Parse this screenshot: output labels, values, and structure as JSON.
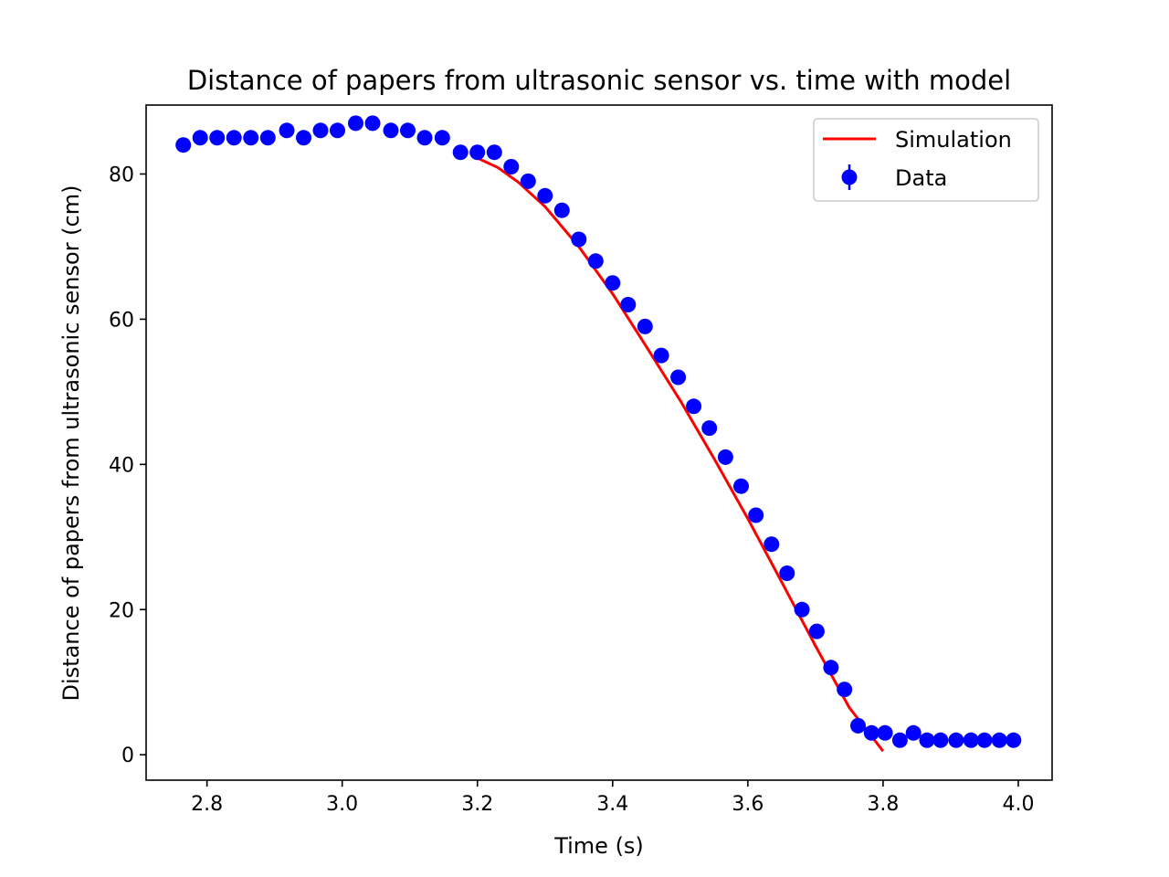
{
  "chart_data": {
    "type": "scatter",
    "title": "Distance of papers from ultrasonic sensor vs. time with model",
    "xlabel": "Time (s)",
    "ylabel": "Distance of papers from ultrasonic sensor (cm)",
    "xlim": [
      2.71,
      4.05
    ],
    "ylim": [
      -3.5,
      89.5
    ],
    "xticks": [
      2.8,
      3.0,
      3.2,
      3.4,
      3.6,
      3.8,
      4.0
    ],
    "xtick_labels": [
      "2.8",
      "3.0",
      "3.2",
      "3.4",
      "3.6",
      "3.8",
      "4.0"
    ],
    "yticks": [
      0,
      20,
      40,
      60,
      80
    ],
    "ytick_labels": [
      "0",
      "20",
      "40",
      "60",
      "80"
    ],
    "grid": false,
    "legend_position": "top-right",
    "legend": [
      {
        "label": "Simulation",
        "color": "#ff0000",
        "marker": "line"
      },
      {
        "label": "Data",
        "color": "#0000ff",
        "marker": "errorbar-dot"
      }
    ],
    "series": [
      {
        "name": "Simulation",
        "kind": "line",
        "color": "#ff0000",
        "x": [
          3.2,
          3.23,
          3.26,
          3.3,
          3.35,
          3.4,
          3.45,
          3.5,
          3.55,
          3.6,
          3.65,
          3.7,
          3.75,
          3.8
        ],
        "y": [
          82.2,
          80.9,
          78.9,
          75.5,
          70.0,
          63.5,
          56.2,
          48.8,
          40.8,
          32.5,
          23.8,
          15.0,
          6.5,
          0.5
        ]
      },
      {
        "name": "Data",
        "kind": "scatter",
        "color": "#0000ff",
        "x": [
          2.765,
          2.79,
          2.815,
          2.84,
          2.865,
          2.89,
          2.918,
          2.943,
          2.968,
          2.993,
          3.02,
          3.045,
          3.072,
          3.097,
          3.122,
          3.148,
          3.175,
          3.2,
          3.225,
          3.25,
          3.275,
          3.3,
          3.325,
          3.35,
          3.375,
          3.4,
          3.423,
          3.448,
          3.472,
          3.497,
          3.52,
          3.543,
          3.567,
          3.59,
          3.612,
          3.635,
          3.658,
          3.68,
          3.702,
          3.723,
          3.743,
          3.763,
          3.783,
          3.803,
          3.825,
          3.845,
          3.865,
          3.885,
          3.908,
          3.93,
          3.95,
          3.972,
          3.993
        ],
        "y": [
          84,
          85,
          85,
          85,
          85,
          85,
          86,
          85,
          86,
          86,
          87,
          87,
          86,
          86,
          85,
          85,
          83,
          83,
          83,
          81,
          79,
          77,
          75,
          71,
          68,
          65,
          62,
          59,
          55,
          52,
          48,
          45,
          41,
          37,
          33,
          29,
          25,
          20,
          17,
          12,
          9,
          4,
          3,
          3,
          2,
          3,
          2,
          2,
          2,
          2,
          2,
          2,
          2
        ]
      }
    ]
  }
}
